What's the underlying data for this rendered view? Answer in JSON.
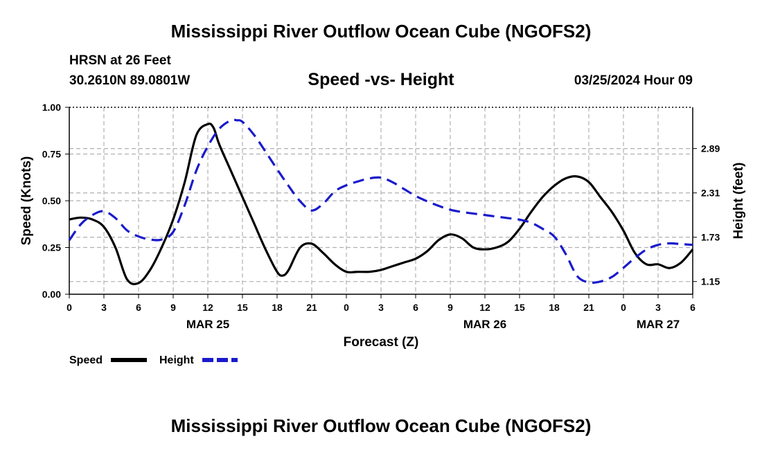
{
  "header": {
    "main_title": "Mississippi River Outflow Ocean Cube (NGOFS2)",
    "station": "HRSN at 26 Feet",
    "coords": "30.2610N  89.0801W",
    "subtitle": "Speed -vs- Height",
    "date": "03/25/2024 Hour 09"
  },
  "footer": {
    "title": "Mississippi River Outflow Ocean Cube (NGOFS2)"
  },
  "colors": {
    "speed": "#000000",
    "height": "#1a1acc",
    "grid": "#b0b0b0"
  },
  "chart_data": {
    "type": "line",
    "title": "Speed -vs- Height",
    "xlabel": "Forecast (Z)",
    "ylabel": "Speed (Knots)",
    "y2label": "Height (feet)",
    "xlim": [
      0,
      54
    ],
    "ylim": [
      0,
      1
    ],
    "y2lim": [
      0.984,
      3.43
    ],
    "x_ticks": [
      0,
      3,
      6,
      9,
      12,
      15,
      18,
      21,
      24,
      27,
      30,
      33,
      36,
      39,
      42,
      45,
      48,
      51,
      54
    ],
    "x_tick_labels": [
      "0",
      "3",
      "6",
      "9",
      "12",
      "15",
      "18",
      "21",
      "0",
      "3",
      "6",
      "9",
      "12",
      "15",
      "18",
      "21",
      "0",
      "3",
      "6"
    ],
    "y_ticks": [
      0,
      0.25,
      0.5,
      0.75,
      1.0
    ],
    "y_tick_labels": [
      "0.00",
      "0.25",
      "0.50",
      "0.75",
      "1.00"
    ],
    "y2_ticks": [
      1.15,
      1.73,
      2.31,
      2.89
    ],
    "y2_tick_labels": [
      "1.15",
      "1.73",
      "2.31",
      "2.89"
    ],
    "date_labels": [
      {
        "x": 12,
        "label": "MAR 25"
      },
      {
        "x": 36,
        "label": "MAR 26"
      },
      {
        "x": 51,
        "label": "MAR 27"
      }
    ],
    "legend": [
      {
        "name": "Speed",
        "style": "solid"
      },
      {
        "name": "Height",
        "style": "dashed"
      }
    ],
    "series": [
      {
        "name": "Speed",
        "axis": "left",
        "style": "solid",
        "x": [
          0,
          1,
          2,
          3,
          4,
          5,
          6,
          7,
          8,
          9,
          10,
          11,
          12,
          12.5,
          13,
          14,
          15,
          16,
          17,
          18,
          18.5,
          19,
          20,
          21,
          22,
          23,
          24,
          25,
          26,
          27,
          28,
          29,
          30,
          31,
          32,
          33,
          34,
          35,
          36,
          37,
          38,
          39,
          40,
          41,
          42,
          43,
          44,
          45,
          46,
          47,
          48,
          49,
          50,
          51,
          52,
          53,
          54
        ],
        "y": [
          0.4,
          0.41,
          0.4,
          0.36,
          0.25,
          0.08,
          0.06,
          0.13,
          0.25,
          0.4,
          0.6,
          0.85,
          0.91,
          0.89,
          0.8,
          0.66,
          0.52,
          0.38,
          0.24,
          0.12,
          0.1,
          0.13,
          0.25,
          0.27,
          0.22,
          0.16,
          0.12,
          0.12,
          0.12,
          0.13,
          0.15,
          0.17,
          0.19,
          0.23,
          0.29,
          0.32,
          0.3,
          0.25,
          0.24,
          0.25,
          0.28,
          0.35,
          0.44,
          0.52,
          0.58,
          0.62,
          0.63,
          0.6,
          0.52,
          0.44,
          0.34,
          0.22,
          0.16,
          0.16,
          0.14,
          0.17,
          0.24
        ]
      },
      {
        "name": "Height",
        "axis": "right",
        "style": "dashed",
        "x": [
          0,
          1,
          2,
          3,
          4,
          5,
          6,
          7,
          8,
          9,
          10,
          11,
          12,
          13,
          14,
          14.5,
          15,
          16,
          17,
          18,
          19,
          20,
          21,
          22,
          23,
          24,
          25,
          26,
          27,
          28,
          29,
          30,
          31,
          32,
          33,
          34,
          35,
          36,
          37,
          38,
          39,
          40,
          41,
          42,
          43,
          44,
          45,
          46,
          47,
          48,
          49,
          50,
          51,
          52,
          53,
          54
        ],
        "y": [
          1.69,
          1.9,
          2.02,
          2.07,
          1.98,
          1.82,
          1.74,
          1.7,
          1.7,
          1.8,
          2.15,
          2.6,
          2.92,
          3.15,
          3.26,
          3.26,
          3.24,
          3.07,
          2.85,
          2.62,
          2.4,
          2.2,
          2.08,
          2.17,
          2.33,
          2.41,
          2.46,
          2.5,
          2.51,
          2.45,
          2.36,
          2.27,
          2.2,
          2.14,
          2.09,
          2.06,
          2.04,
          2.02,
          2.0,
          1.98,
          1.96,
          1.92,
          1.84,
          1.74,
          1.51,
          1.22,
          1.14,
          1.15,
          1.21,
          1.33,
          1.46,
          1.57,
          1.63,
          1.65,
          1.64,
          1.63
        ]
      }
    ]
  }
}
